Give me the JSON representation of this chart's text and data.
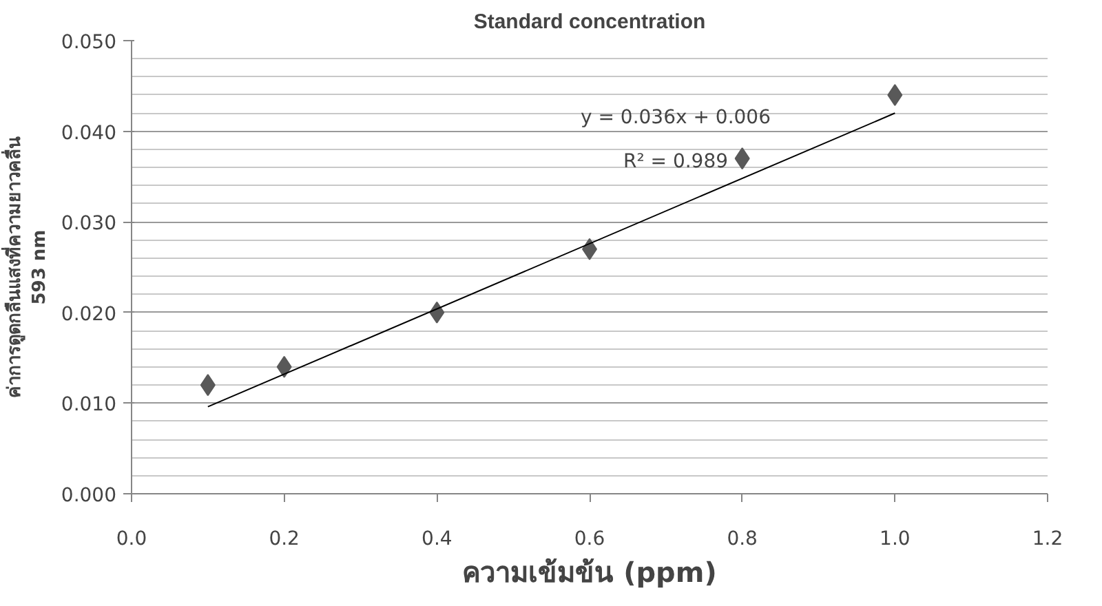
{
  "chart_data": {
    "type": "scatter",
    "title": "Standard concentration",
    "xlabel": "ความเข้มข้น (ppm)",
    "ylabel": "ค่าการดูดกลืนแสงที่ความยาวคลื่น\n593 nm",
    "x": [
      0.1,
      0.2,
      0.4,
      0.6,
      0.8,
      1.0
    ],
    "series": [
      {
        "color": "#595959",
        "marker": "diamond",
        "values": [
          0.012,
          0.014,
          0.02,
          0.027,
          0.037,
          0.044
        ]
      },
      {
        "type": "line",
        "color": "#000000",
        "x": [
          0.1,
          1.0
        ],
        "values": [
          0.0096,
          0.042
        ]
      }
    ],
    "xlim": [
      0.0,
      1.2
    ],
    "xticks": [
      {
        "value": 0,
        "label": "0.0"
      },
      0.2,
      0.4,
      0.6,
      0.8,
      {
        "value": 1,
        "label": "1.0"
      },
      1.2
    ],
    "ylim": [
      0.0,
      0.05
    ],
    "yticks": [
      {
        "value": 0,
        "label": "0.000"
      },
      {
        "value": 0.01,
        "label": "0.010"
      },
      {
        "value": 0.02,
        "label": "0.020"
      },
      {
        "value": 0.03,
        "label": "0.030"
      },
      {
        "value": 0.04,
        "label": "0.040"
      },
      {
        "value": 0.05,
        "label": "0.050"
      }
    ],
    "grid": "y",
    "annotations": [
      "y = 0.036x + 0.006",
      "R² = 0.989"
    ]
  }
}
